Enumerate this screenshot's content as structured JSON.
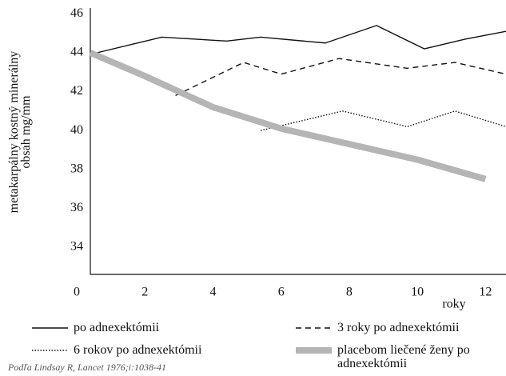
{
  "chart_data": {
    "type": "line",
    "y_label": "metakarpálny kostný minerálny obsah mg/mm",
    "x_label": "roky",
    "source": "Podľa Lindsay R, Lancet 1976;i:1038-41",
    "xlim": [
      0.4,
      12.6
    ],
    "xticks": [
      0,
      2,
      4,
      6,
      8,
      10,
      12
    ],
    "ylim": [
      32.6,
      46.3
    ],
    "yticks": [
      34,
      36,
      38,
      40,
      42,
      44,
      46
    ],
    "series": [
      {
        "name": "po adnexektómii",
        "color": "#111111",
        "style": "solid",
        "x": [
          0.6,
          2.5,
          4.4,
          5.4,
          7.3,
          8.8,
          10.2,
          11.4,
          12.6
        ],
        "values": [
          44.0,
          44.8,
          44.6,
          44.8,
          44.5,
          45.4,
          44.2,
          44.7,
          45.1
        ]
      },
      {
        "name": "3 roky po adnexektómii",
        "color": "#111111",
        "style": "dashed",
        "x": [
          2.9,
          4.9,
          6.0,
          7.7,
          9.7,
          11.1,
          12.6
        ],
        "values": [
          41.8,
          43.5,
          42.9,
          43.7,
          43.2,
          43.5,
          42.9
        ]
      },
      {
        "name": "6 rokov po adnexektómii",
        "color": "#111111",
        "style": "dotted",
        "x": [
          5.4,
          7.8,
          9.7,
          11.1,
          12.6
        ],
        "values": [
          40.0,
          41.0,
          40.2,
          41.0,
          40.2
        ]
      },
      {
        "name": "placebom liečené ženy po adnexektómii",
        "color": "#b5b5b5",
        "style": "thick",
        "x": [
          0.4,
          2,
          4,
          6,
          8,
          10,
          12
        ],
        "values": [
          44.0,
          42.8,
          41.2,
          40.1,
          39.3,
          38.5,
          37.5
        ]
      }
    ]
  }
}
